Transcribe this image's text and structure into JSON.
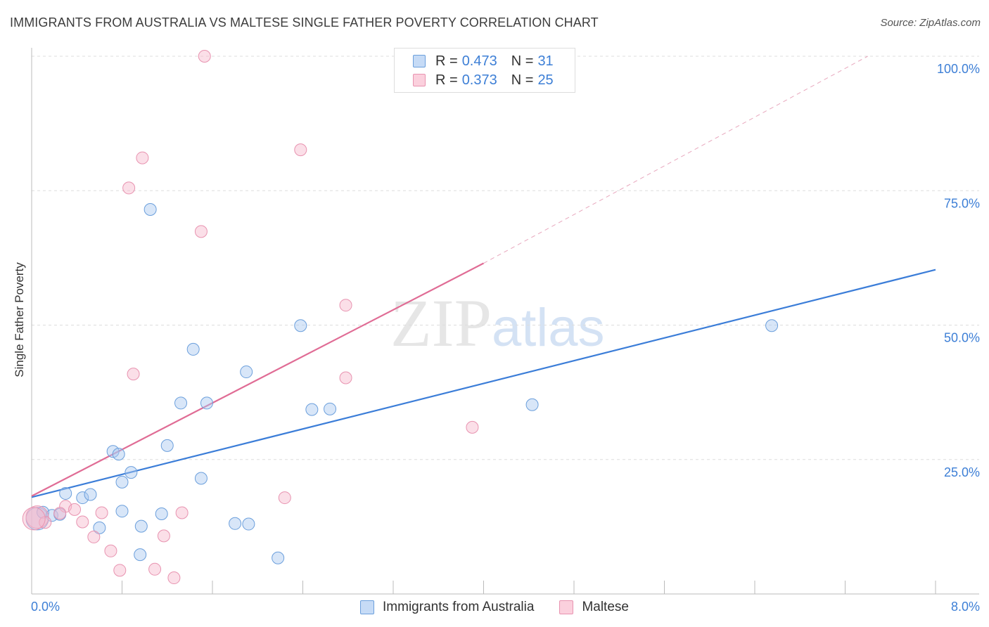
{
  "header": {
    "title": "IMMIGRANTS FROM AUSTRALIA VS MALTESE SINGLE FATHER POVERTY CORRELATION CHART",
    "source": "Source: ZipAtlas.com"
  },
  "watermark": {
    "zip": "ZIP",
    "atlas": "atlas"
  },
  "legend": {
    "rows": [
      {
        "r_label": "R =",
        "r_value": "0.473",
        "n_label": "N =",
        "n_value": "31"
      },
      {
        "r_label": "R =",
        "r_value": "0.373",
        "n_label": "N =",
        "n_value": "25"
      }
    ]
  },
  "colors": {
    "blue_fill": "#a9c8f0",
    "blue_stroke": "#6b9fdc",
    "blue_line": "#3b7dd8",
    "pink_fill": "#f7b8cb",
    "pink_stroke": "#e893b0",
    "pink_line": "#e06c95",
    "grid": "#dddddd",
    "axis_text": "#3d7fd6"
  },
  "chart_data": {
    "type": "scatter",
    "title": "IMMIGRANTS FROM AUSTRALIA VS MALTESE SINGLE FATHER POVERTY CORRELATION CHART",
    "xlabel": "",
    "ylabel": "Single Father Poverty",
    "xlim": [
      0,
      8
    ],
    "ylim": [
      0,
      100
    ],
    "x_tick_labels": [
      "0.0%",
      "8.0%"
    ],
    "y_tick_labels": [
      "100.0%",
      "75.0%",
      "50.0%",
      "25.0%"
    ],
    "y_ticks": [
      100,
      75,
      50,
      25
    ],
    "grid": true,
    "legend_position": "top-center",
    "series": [
      {
        "name": "Immigrants from Australia",
        "color": "#6b9fdc",
        "points": [
          [
            0.05,
            14.0
          ],
          [
            0.1,
            15.2
          ],
          [
            0.18,
            14.6
          ],
          [
            0.25,
            14.8
          ],
          [
            0.3,
            18.7
          ],
          [
            0.45,
            17.9
          ],
          [
            0.52,
            18.5
          ],
          [
            0.6,
            12.3
          ],
          [
            0.72,
            26.5
          ],
          [
            0.77,
            26.0
          ],
          [
            0.8,
            15.4
          ],
          [
            0.8,
            20.8
          ],
          [
            0.88,
            22.6
          ],
          [
            0.96,
            7.3
          ],
          [
            0.97,
            12.6
          ],
          [
            1.05,
            71.5
          ],
          [
            1.15,
            14.9
          ],
          [
            1.2,
            27.6
          ],
          [
            1.32,
            35.5
          ],
          [
            1.43,
            45.5
          ],
          [
            1.5,
            21.5
          ],
          [
            1.55,
            35.5
          ],
          [
            1.8,
            13.1
          ],
          [
            1.9,
            41.3
          ],
          [
            1.92,
            13.0
          ],
          [
            2.18,
            6.7
          ],
          [
            2.38,
            49.9
          ],
          [
            2.48,
            34.3
          ],
          [
            2.64,
            34.4
          ],
          [
            4.43,
            35.2
          ],
          [
            6.55,
            49.9
          ]
        ],
        "trend": {
          "x": [
            0,
            8
          ],
          "y": [
            18.0,
            60.3
          ]
        }
      },
      {
        "name": "Maltese",
        "color": "#e893b0",
        "points": [
          [
            0.05,
            14.3
          ],
          [
            0.12,
            13.3
          ],
          [
            0.3,
            16.3
          ],
          [
            0.38,
            15.7
          ],
          [
            0.45,
            13.4
          ],
          [
            0.55,
            10.6
          ],
          [
            0.62,
            15.1
          ],
          [
            0.7,
            8.0
          ],
          [
            0.78,
            4.4
          ],
          [
            0.86,
            75.5
          ],
          [
            0.9,
            40.9
          ],
          [
            0.98,
            81.1
          ],
          [
            1.09,
            4.6
          ],
          [
            1.17,
            10.8
          ],
          [
            1.26,
            3.0
          ],
          [
            1.33,
            15.1
          ],
          [
            1.5,
            67.4
          ],
          [
            1.53,
            100.0
          ],
          [
            2.24,
            17.9
          ],
          [
            2.38,
            82.6
          ],
          [
            2.78,
            53.7
          ],
          [
            2.78,
            40.2
          ],
          [
            3.9,
            31.0
          ],
          [
            0.02,
            14.0
          ],
          [
            0.25,
            15.0
          ]
        ],
        "trend": {
          "x": [
            0,
            4.0
          ],
          "y": [
            18.2,
            61.5
          ]
        },
        "trend_extension": {
          "x": [
            4.0,
            7.4
          ],
          "y": [
            61.5,
            100.0
          ]
        }
      }
    ]
  },
  "bottom_legend": {
    "items": [
      {
        "label": "Immigrants from Australia"
      },
      {
        "label": "Maltese"
      }
    ]
  }
}
